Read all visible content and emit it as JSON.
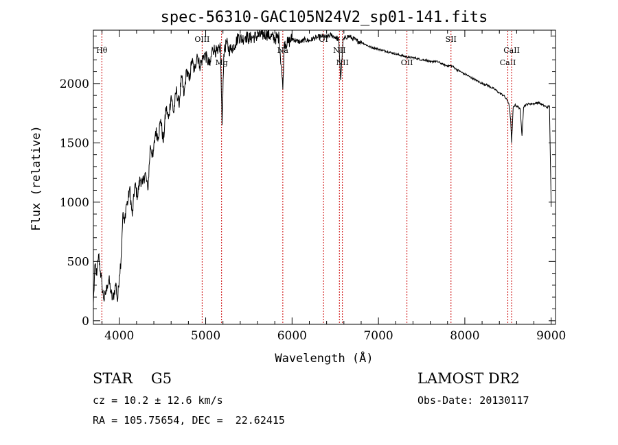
{
  "chart_data": {
    "type": "line",
    "title": "spec-56310-GAC105N24V2_sp01-141.fits",
    "xlabel": "Wavelength (Å)",
    "ylabel": "Flux (relative)",
    "xlim": [
      3700,
      9050
    ],
    "ylim": [
      -30,
      2450
    ],
    "xticks": [
      4000,
      5000,
      6000,
      7000,
      8000,
      9000
    ],
    "yticks": [
      0,
      500,
      1000,
      1500,
      2000
    ],
    "series": [
      {
        "name": "spectrum",
        "x": [
          3700,
          3720,
          3740,
          3760,
          3780,
          3800,
          3820,
          3840,
          3860,
          3880,
          3900,
          3920,
          3940,
          3960,
          3980,
          4000,
          4020,
          4040,
          4060,
          4080,
          4100,
          4120,
          4150,
          4180,
          4210,
          4240,
          4270,
          4300,
          4330,
          4360,
          4390,
          4420,
          4450,
          4480,
          4510,
          4540,
          4570,
          4600,
          4630,
          4660,
          4690,
          4720,
          4750,
          4780,
          4810,
          4840,
          4870,
          4900,
          4930,
          4960,
          4990,
          5020,
          5050,
          5080,
          5110,
          5140,
          5170,
          5190,
          5210,
          5240,
          5270,
          5300,
          5340,
          5380,
          5420,
          5460,
          5500,
          5550,
          5600,
          5650,
          5700,
          5750,
          5800,
          5850,
          5880,
          5893,
          5910,
          5950,
          6000,
          6050,
          6100,
          6150,
          6200,
          6250,
          6300,
          6350,
          6400,
          6450,
          6500,
          6540,
          6563,
          6590,
          6620,
          6660,
          6700,
          6750,
          6800,
          6850,
          6900,
          6950,
          7000,
          7050,
          7100,
          7150,
          7200,
          7250,
          7300,
          7350,
          7400,
          7450,
          7500,
          7550,
          7600,
          7650,
          7700,
          7750,
          7800,
          7850,
          7900,
          7950,
          8000,
          8050,
          8100,
          8150,
          8200,
          8250,
          8300,
          8350,
          8400,
          8450,
          8480,
          8498,
          8510,
          8530,
          8542,
          8560,
          8580,
          8600,
          8640,
          8662,
          8680,
          8700,
          8750,
          8800,
          8850,
          8900,
          8950,
          8980,
          9000
        ],
        "values": [
          150,
          480,
          380,
          560,
          420,
          300,
          180,
          220,
          300,
          350,
          250,
          180,
          230,
          320,
          160,
          380,
          520,
          900,
          820,
          980,
          1000,
          1120,
          880,
          1150,
          1050,
          1200,
          1150,
          1250,
          1100,
          1480,
          1380,
          1600,
          1550,
          1700,
          1500,
          1800,
          1700,
          1900,
          1750,
          1950,
          1820,
          2050,
          1900,
          2120,
          2020,
          2200,
          2100,
          2250,
          2150,
          2200,
          2250,
          2200,
          2150,
          2300,
          2280,
          2250,
          2320,
          1650,
          2250,
          2350,
          2280,
          2300,
          2330,
          2400,
          2370,
          2400,
          2380,
          2390,
          2400,
          2410,
          2420,
          2400,
          2380,
          2390,
          2100,
          1950,
          2350,
          2340,
          2380,
          2360,
          2350,
          2370,
          2360,
          2380,
          2390,
          2400,
          2390,
          2410,
          2390,
          2370,
          2030,
          2360,
          2390,
          2400,
          2380,
          2360,
          2350,
          2330,
          2310,
          2300,
          2290,
          2280,
          2270,
          2260,
          2250,
          2240,
          2230,
          2220,
          2220,
          2210,
          2200,
          2200,
          2180,
          2190,
          2180,
          2160,
          2150,
          2150,
          2120,
          2100,
          2080,
          2060,
          2040,
          2020,
          2000,
          1990,
          1970,
          1950,
          1920,
          1900,
          1870,
          1850,
          1830,
          1700,
          1500,
          1800,
          1820,
          1810,
          1790,
          1560,
          1800,
          1820,
          1830,
          1830,
          1840,
          1820,
          1800,
          1810,
          960
        ]
      }
    ],
    "lines": [
      {
        "label": "Hθ",
        "wavelength": 3798,
        "label_row": "upper"
      },
      {
        "label": "OIII",
        "wavelength": 4959,
        "label_row": "top"
      },
      {
        "label": "Mg",
        "wavelength": 5184,
        "label_row": "lower"
      },
      {
        "label": "Na",
        "wavelength": 5893,
        "label_row": "upper"
      },
      {
        "label": "OI",
        "wavelength": 6364,
        "label_row": "top"
      },
      {
        "label": "NII",
        "wavelength": 6548,
        "label_row": "upper"
      },
      {
        "label": "NII",
        "wavelength": 6583,
        "label_row": "lower"
      },
      {
        "label": "OII",
        "wavelength": 7330,
        "label_row": "lower"
      },
      {
        "label": "SII",
        "wavelength": 7840,
        "label_row": "top"
      },
      {
        "label": "CaII",
        "wavelength": 8498,
        "label_row": "lower"
      },
      {
        "label": "CaII",
        "wavelength": 8542,
        "label_row": "upper"
      }
    ]
  },
  "footer": {
    "object": "STAR    G5",
    "survey": "LAMOST DR2",
    "cz": "cz = 10.2 ± 12.6 km/s",
    "obs_date": "Obs-Date: 20130117",
    "coords": "RA = 105.75654, DEC =  22.62415"
  },
  "colors": {
    "spectrum": "#000000",
    "line_marker": "#cc0000",
    "axes": "#000000"
  }
}
